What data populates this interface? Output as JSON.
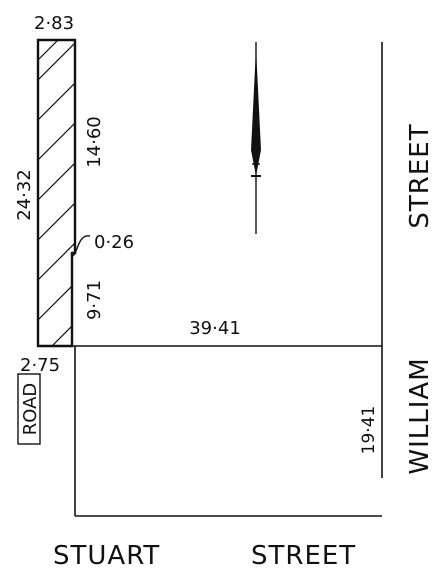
{
  "dimensions": {
    "top_width": "2·83",
    "bottom_width": "2·75",
    "left_height": "24·32",
    "upper_right_segment": "14·60",
    "offset": "0·26",
    "lower_right_segment": "9·71",
    "lot_depth": "39·41",
    "corner_segment": "19·41"
  },
  "streets": {
    "road_box": "ROAD",
    "bottom_street_word1": "STUART",
    "bottom_street_word2": "STREET",
    "right_street_word1": "WILLIAM",
    "right_street_word2": "STREET"
  },
  "colors": {
    "ink": "#111111",
    "background": "#ffffff"
  }
}
